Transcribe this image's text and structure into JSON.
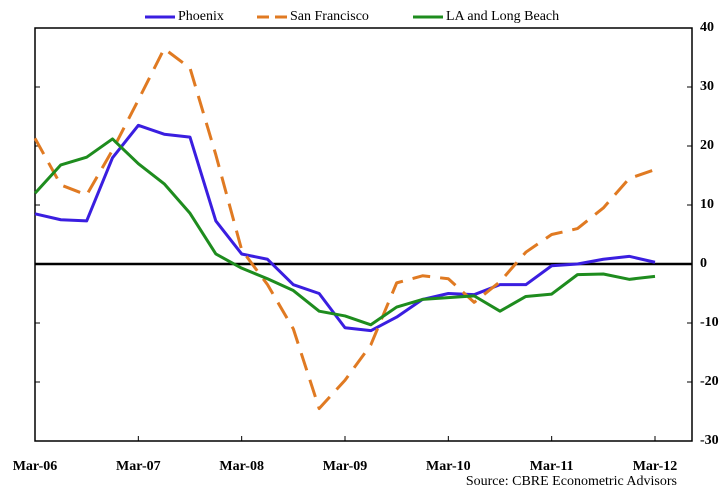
{
  "chart_data": {
    "type": "line",
    "source": "Source: CBRE Econometric Advisors",
    "categories": [
      "Mar-06",
      null,
      null,
      null,
      "Mar-07",
      null,
      null,
      null,
      "Mar-08",
      null,
      null,
      null,
      "Mar-09",
      null,
      null,
      null,
      "Mar-10",
      null,
      null,
      null,
      "Mar-11",
      null,
      null,
      null,
      "Mar-12"
    ],
    "series": [
      {
        "name": "Phoenix",
        "color": "#3a1ee0",
        "dashed": false,
        "values": [
          8.5,
          7.5,
          7.3,
          18,
          23.5,
          22,
          21.5,
          7.3,
          1.7,
          0.8,
          -3.5,
          -5,
          -10.8,
          -11.3,
          -9,
          -6,
          -5,
          -5.2,
          -3.5,
          -3.5,
          -0.3,
          0,
          0.8,
          1.3,
          0.3
        ]
      },
      {
        "name": "San Francisco",
        "color": "#e07a22",
        "dashed": true,
        "values": [
          21.3,
          13.4,
          11.7,
          19.3,
          27.8,
          36.5,
          33.2,
          18.5,
          2.4,
          -3.5,
          -11,
          -24.5,
          -19.7,
          -13.7,
          -3.2,
          -2,
          -2.5,
          -6.5,
          -3,
          2,
          5,
          6,
          9.5,
          14.5,
          16
        ]
      },
      {
        "name": "LA and Long Beach",
        "color": "#1e8c1e",
        "dashed": false,
        "values": [
          12,
          16.8,
          18.1,
          21.2,
          17,
          13.6,
          8.6,
          1.7,
          -0.7,
          -2.5,
          -4.5,
          -8,
          -8.8,
          -10.3,
          -7.3,
          -6,
          -5.7,
          -5.4,
          -8,
          -5.5,
          -5.1,
          -1.8,
          -1.7,
          -2.6,
          -2.1
        ]
      }
    ],
    "ylim": [
      -30,
      40
    ],
    "yticks": [
      -30,
      -20,
      -10,
      0,
      10,
      20,
      30,
      40
    ],
    "y_axis_side": "right",
    "legend": "top"
  }
}
